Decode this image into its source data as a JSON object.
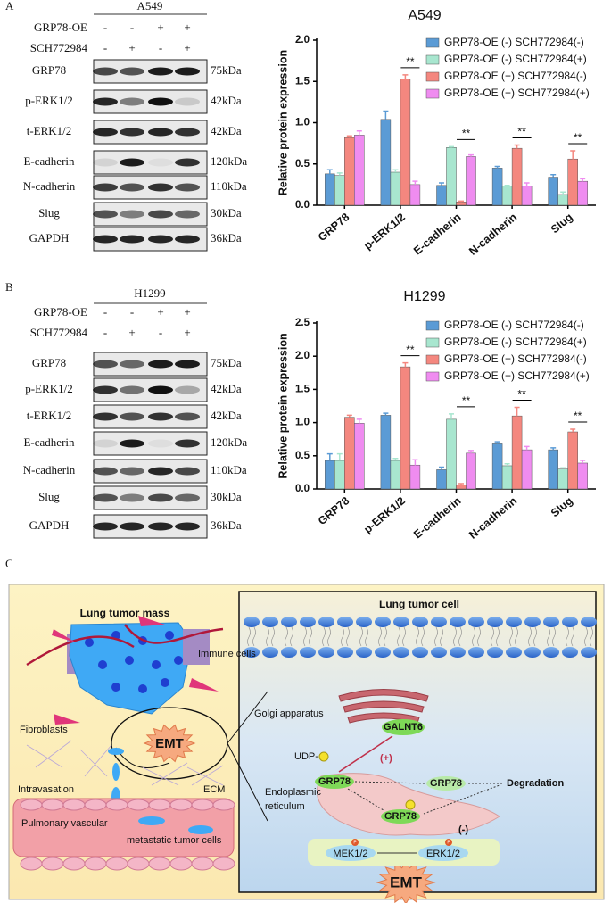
{
  "panel_labels": [
    "A",
    "B",
    "C"
  ],
  "blots": [
    {
      "title": "A549",
      "treatments": [
        {
          "name": "GRP78-OE",
          "signs": [
            "-",
            "-",
            "+",
            "+"
          ]
        },
        {
          "name": "SCH772984",
          "signs": [
            "-",
            "+",
            "-",
            "+"
          ]
        }
      ],
      "rows": [
        {
          "protein": "GRP78",
          "size": "75kDa"
        },
        {
          "protein": "p-ERK1/2",
          "size": "42kDa"
        },
        {
          "protein": "t-ERK1/2",
          "size": "42kDa"
        },
        {
          "protein": "E-cadherin",
          "size": "120kDa"
        },
        {
          "protein": "N-cadherin",
          "size": "110kDa"
        },
        {
          "protein": "Slug",
          "size": "30kDa"
        },
        {
          "protein": "GAPDH",
          "size": "36kDa"
        }
      ]
    },
    {
      "title": "H1299",
      "treatments": [
        {
          "name": "GRP78-OE",
          "signs": [
            "-",
            "-",
            "+",
            "+"
          ]
        },
        {
          "name": "SCH772984",
          "signs": [
            "-",
            "+",
            "-",
            "+"
          ]
        }
      ],
      "rows": [
        {
          "protein": "GRP78",
          "size": "75kDa"
        },
        {
          "protein": "p-ERK1/2",
          "size": "42kDa"
        },
        {
          "protein": "t-ERK1/2",
          "size": "42kDa"
        },
        {
          "protein": "E-cadherin",
          "size": "120kDa"
        },
        {
          "protein": "N-cadherin",
          "size": "110kDa"
        },
        {
          "protein": "Slug",
          "size": "30kDa"
        },
        {
          "protein": "GAPDH",
          "size": "36kDa"
        }
      ]
    }
  ],
  "chart_data": [
    {
      "type": "bar",
      "title": "A549",
      "y_label": "Relative protein expression",
      "categories": [
        "GRP78",
        "p-ERK1/2",
        "E-cadherin",
        "N-cadherin",
        "Slug"
      ],
      "series": [
        {
          "name": "GRP78-OE (-) SCH772984(-)",
          "color": "#5b9bd5",
          "values": [
            0.38,
            1.04,
            0.24,
            0.45,
            0.34
          ],
          "errors": [
            0.05,
            0.1,
            0.03,
            0.02,
            0.03
          ]
        },
        {
          "name": "GRP78-OE (-) SCH772984(+)",
          "color": "#a8e6cf",
          "values": [
            0.36,
            0.4,
            0.7,
            0.23,
            0.13
          ],
          "errors": [
            0.03,
            0.03,
            0.01,
            0.01,
            0.03
          ]
        },
        {
          "name": "GRP78-OE (+) SCH772984(-)",
          "color": "#f4877f",
          "values": [
            0.82,
            1.53,
            0.04,
            0.69,
            0.56
          ],
          "errors": [
            0.02,
            0.05,
            0.01,
            0.04,
            0.1
          ]
        },
        {
          "name": "GRP78-OE (+) SCH772984(+)",
          "color": "#ef8cf0",
          "values": [
            0.85,
            0.25,
            0.59,
            0.23,
            0.29
          ],
          "errors": [
            0.05,
            0.04,
            0.02,
            0.04,
            0.03
          ]
        }
      ],
      "annotations": [
        null,
        "**",
        "**",
        "**",
        "**"
      ],
      "ylim": [
        0,
        2.0
      ],
      "yticks": [
        {
          "value": 0,
          "label": "0.0"
        },
        0.5,
        {
          "value": 1,
          "label": "1.0"
        },
        1.5,
        {
          "value": 2,
          "label": "2.0"
        }
      ],
      "legend": "upper right"
    },
    {
      "type": "bar",
      "title": "H1299",
      "y_label": "Relative protein expression",
      "categories": [
        "GRP78",
        "p-ERK1/2",
        "E-cadherin",
        "N-cadherin",
        "Slug"
      ],
      "series": [
        {
          "name": "GRP78-OE (-) SCH772984(-)",
          "color": "#5b9bd5",
          "values": [
            0.43,
            1.11,
            0.29,
            0.68,
            0.59
          ],
          "errors": [
            0.1,
            0.03,
            0.04,
            0.03,
            0.03
          ]
        },
        {
          "name": "GRP78-OE (-) SCH772984(+)",
          "color": "#a8e6cf",
          "values": [
            0.43,
            0.43,
            1.05,
            0.35,
            0.3
          ],
          "errors": [
            0.1,
            0.03,
            0.08,
            0.03,
            0.02
          ]
        },
        {
          "name": "GRP78-OE (+) SCH772984(-)",
          "color": "#f4877f",
          "values": [
            1.08,
            1.84,
            0.06,
            1.1,
            0.86
          ],
          "errors": [
            0.03,
            0.06,
            0.02,
            0.13,
            0.04
          ]
        },
        {
          "name": "GRP78-OE (+) SCH772984(+)",
          "color": "#ef8cf0",
          "values": [
            0.99,
            0.36,
            0.54,
            0.59,
            0.39
          ],
          "errors": [
            0.06,
            0.08,
            0.04,
            0.05,
            0.04
          ]
        }
      ],
      "annotations": [
        null,
        "**",
        "**",
        "**",
        "**"
      ],
      "ylim": [
        0,
        2.5
      ],
      "yticks": [
        {
          "value": 0,
          "label": "0.0"
        },
        0.5,
        {
          "value": 1,
          "label": "1.0"
        },
        1.5,
        {
          "value": 2,
          "label": "2.0"
        },
        2.5
      ],
      "legend": "upper right"
    }
  ],
  "diagram": {
    "left_title": "Lung tumor mass",
    "immune_cells": "Immune cells",
    "fibroblasts": "Fibroblasts",
    "emt_left": "EMT",
    "intravasation": "Intravasation",
    "ecm": "ECM",
    "pulmonary_vascular": "Pulmonary vascular",
    "metastatic_cells": "metastatic tumor cells",
    "right_title": "Lung tumor cell",
    "golgi": "Golgi apparatus",
    "galnt6": "GALNT6",
    "udp": "UDP-",
    "plus": "(+)",
    "grp78_a": "GRP78",
    "grp78_b": "GRP78",
    "grp78_c": "GRP78",
    "degradation": "Degradation",
    "er_line1": "Endoplasmic",
    "er_line2": "reticulum",
    "minus": "(-)",
    "mek": "MEK1/2",
    "erk": "ERK1/2",
    "phospho": "P",
    "emt_right": "EMT"
  }
}
